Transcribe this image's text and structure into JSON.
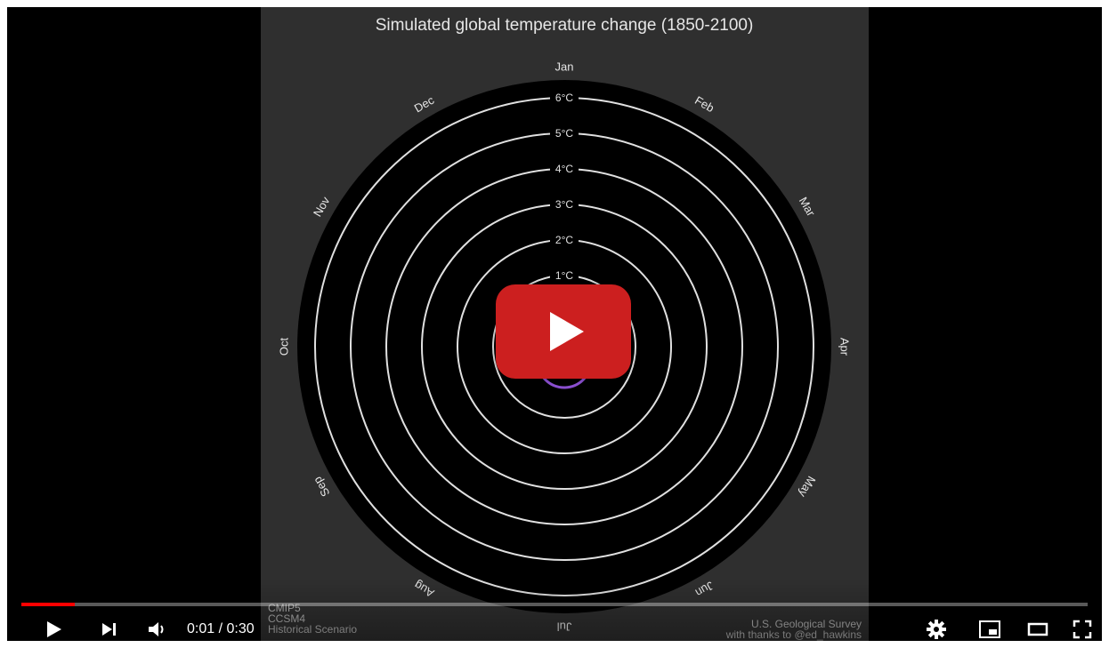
{
  "chart_data": {
    "type": "radial",
    "title": "Simulated global temperature change (1850-2100)",
    "months": [
      "Jan",
      "Feb",
      "Mar",
      "Apr",
      "May",
      "Jun",
      "Jul",
      "Aug",
      "Sep",
      "Oct",
      "Nov",
      "Dec"
    ],
    "ring_labels": [
      "1°C",
      "2°C",
      "3°C",
      "4°C",
      "5°C",
      "6°C"
    ],
    "ring_values": [
      1,
      2,
      3,
      4,
      5,
      6
    ],
    "grid": true
  },
  "video": {
    "left_credit": [
      "CMIP5",
      "CCSM4",
      "Historical Scenario"
    ],
    "right_credit": [
      "U.S. Geological Survey",
      "with thanks to @ed_hawkins"
    ]
  },
  "player": {
    "time": "0:01 / 0:30",
    "progress": 0.05,
    "colors": {
      "progress": "#ff0000",
      "play_button": "#cc1f1f"
    },
    "icons": [
      "play-icon",
      "next-icon",
      "volume-icon",
      "settings-icon",
      "miniplayer-icon",
      "theater-icon",
      "fullscreen-icon"
    ]
  }
}
